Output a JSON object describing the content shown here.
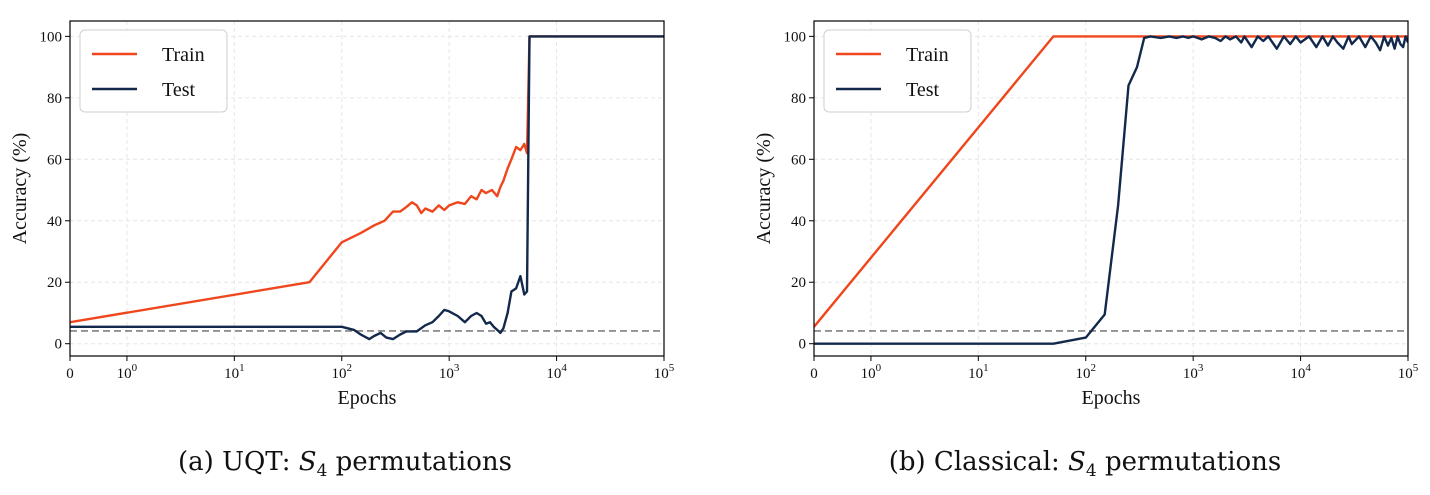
{
  "chart_data": [
    {
      "type": "line",
      "caption": {
        "prefix": "(a) UQT: ",
        "symbol": "S",
        "subscript": "4",
        "suffix": " permutations"
      },
      "xlabel": "Epochs",
      "ylabel": "Accuracy (%)",
      "xscale": "symlog",
      "xlim": [
        0,
        100000
      ],
      "ylim": [
        -4,
        105
      ],
      "x_ticks": [
        {
          "value": 0,
          "label": "0",
          "base": "",
          "exp": ""
        },
        {
          "value": 1,
          "label": "",
          "base": "10",
          "exp": "0"
        },
        {
          "value": 10,
          "label": "",
          "base": "10",
          "exp": "1"
        },
        {
          "value": 100,
          "label": "",
          "base": "10",
          "exp": "2"
        },
        {
          "value": 1000,
          "label": "",
          "base": "10",
          "exp": "3"
        },
        {
          "value": 10000,
          "label": "",
          "base": "10",
          "exp": "4"
        },
        {
          "value": 100000,
          "label": "",
          "base": "10",
          "exp": "5"
        }
      ],
      "y_ticks": [
        {
          "value": 0,
          "label": "0"
        },
        {
          "value": 20,
          "label": "20"
        },
        {
          "value": 40,
          "label": "40"
        },
        {
          "value": 60,
          "label": "60"
        },
        {
          "value": 80,
          "label": "80"
        },
        {
          "value": 100,
          "label": "100"
        }
      ],
      "grid": true,
      "legend_position": "top-left",
      "reference_line": {
        "y": 4.17,
        "style": "dashed",
        "color": "#808080"
      },
      "series": [
        {
          "name": "Train",
          "color": "#f0461e",
          "x": [
            0,
            50,
            100,
            150,
            200,
            250,
            300,
            350,
            400,
            450,
            500,
            550,
            600,
            700,
            800,
            900,
            1000,
            1200,
            1400,
            1600,
            1800,
            2000,
            2200,
            2500,
            2800,
            3000,
            3200,
            3500,
            3800,
            4200,
            4600,
            5000,
            5300,
            5600,
            10000,
            100000
          ],
          "y": [
            7,
            20,
            33,
            36,
            38.5,
            40,
            43,
            43,
            44.5,
            46,
            45,
            42.5,
            44,
            43,
            45,
            43.5,
            45,
            46,
            45.5,
            48,
            47,
            50,
            49,
            50,
            48,
            51,
            53,
            57,
            60,
            64,
            63,
            65,
            62,
            100,
            100,
            100
          ]
        },
        {
          "name": "Test",
          "color": "#13294b",
          "x": [
            0,
            100,
            130,
            150,
            180,
            200,
            230,
            260,
            300,
            350,
            400,
            500,
            600,
            700,
            800,
            900,
            1000,
            1200,
            1400,
            1600,
            1800,
            2000,
            2200,
            2400,
            2600,
            2800,
            3000,
            3200,
            3500,
            3800,
            4200,
            4600,
            5000,
            5300,
            5600,
            10000,
            100000
          ],
          "y": [
            5.5,
            5.5,
            4.5,
            3,
            1.5,
            2.5,
            3.5,
            2,
            1.5,
            3,
            4,
            4,
            6,
            7,
            9,
            11,
            10.5,
            9,
            7,
            9,
            10,
            9,
            6.5,
            7,
            5.5,
            4.5,
            3.5,
            5,
            10,
            17,
            18,
            22,
            16,
            17,
            100,
            100,
            100
          ]
        }
      ]
    },
    {
      "type": "line",
      "caption": {
        "prefix": "(b) Classical: ",
        "symbol": "S",
        "subscript": "4",
        "suffix": " permutations"
      },
      "xlabel": "Epochs",
      "ylabel": "Accuracy (%)",
      "xscale": "symlog",
      "xlim": [
        0,
        100000
      ],
      "ylim": [
        -4,
        105
      ],
      "x_ticks": [
        {
          "value": 0,
          "label": "0",
          "base": "",
          "exp": ""
        },
        {
          "value": 1,
          "label": "",
          "base": "10",
          "exp": "0"
        },
        {
          "value": 10,
          "label": "",
          "base": "10",
          "exp": "1"
        },
        {
          "value": 100,
          "label": "",
          "base": "10",
          "exp": "2"
        },
        {
          "value": 1000,
          "label": "",
          "base": "10",
          "exp": "3"
        },
        {
          "value": 10000,
          "label": "",
          "base": "10",
          "exp": "4"
        },
        {
          "value": 100000,
          "label": "",
          "base": "10",
          "exp": "5"
        }
      ],
      "y_ticks": [
        {
          "value": 0,
          "label": "0"
        },
        {
          "value": 20,
          "label": "20"
        },
        {
          "value": 40,
          "label": "40"
        },
        {
          "value": 60,
          "label": "60"
        },
        {
          "value": 80,
          "label": "80"
        },
        {
          "value": 100,
          "label": "100"
        }
      ],
      "grid": true,
      "legend_position": "top-left",
      "reference_line": {
        "y": 4.17,
        "style": "dashed",
        "color": "#808080"
      },
      "series": [
        {
          "name": "Train",
          "color": "#f0461e",
          "x": [
            0,
            50,
            100000
          ],
          "y": [
            5.5,
            100,
            100
          ]
        },
        {
          "name": "Test",
          "color": "#13294b",
          "x": [
            0,
            50,
            100,
            150,
            200,
            250,
            300,
            350,
            400,
            500,
            600,
            700,
            800,
            900,
            1000,
            1200,
            1400,
            1600,
            1800,
            2000,
            2200,
            2500,
            2800,
            3000,
            3500,
            4000,
            4500,
            5000,
            6000,
            7000,
            8000,
            9000,
            10000,
            12000,
            14000,
            16000,
            18000,
            20000,
            22000,
            25000,
            28000,
            30000,
            35000,
            40000,
            45000,
            50000,
            55000,
            60000,
            65000,
            70000,
            75000,
            80000,
            85000,
            90000,
            95000,
            100000
          ],
          "y": [
            0,
            0,
            2,
            9.5,
            45,
            84,
            90,
            99.5,
            100,
            99.5,
            100,
            99.5,
            100,
            99.5,
            100,
            99,
            100,
            99.5,
            98.5,
            100,
            99,
            100,
            98,
            100,
            96.5,
            100,
            98.5,
            100,
            96,
            100,
            97.5,
            100,
            98,
            100,
            96.5,
            100,
            97,
            100,
            98,
            96,
            100,
            97.5,
            100,
            96.5,
            100,
            98,
            95.5,
            100,
            97,
            99.5,
            96,
            100,
            97.5,
            96.5,
            100,
            98
          ]
        }
      ]
    }
  ]
}
